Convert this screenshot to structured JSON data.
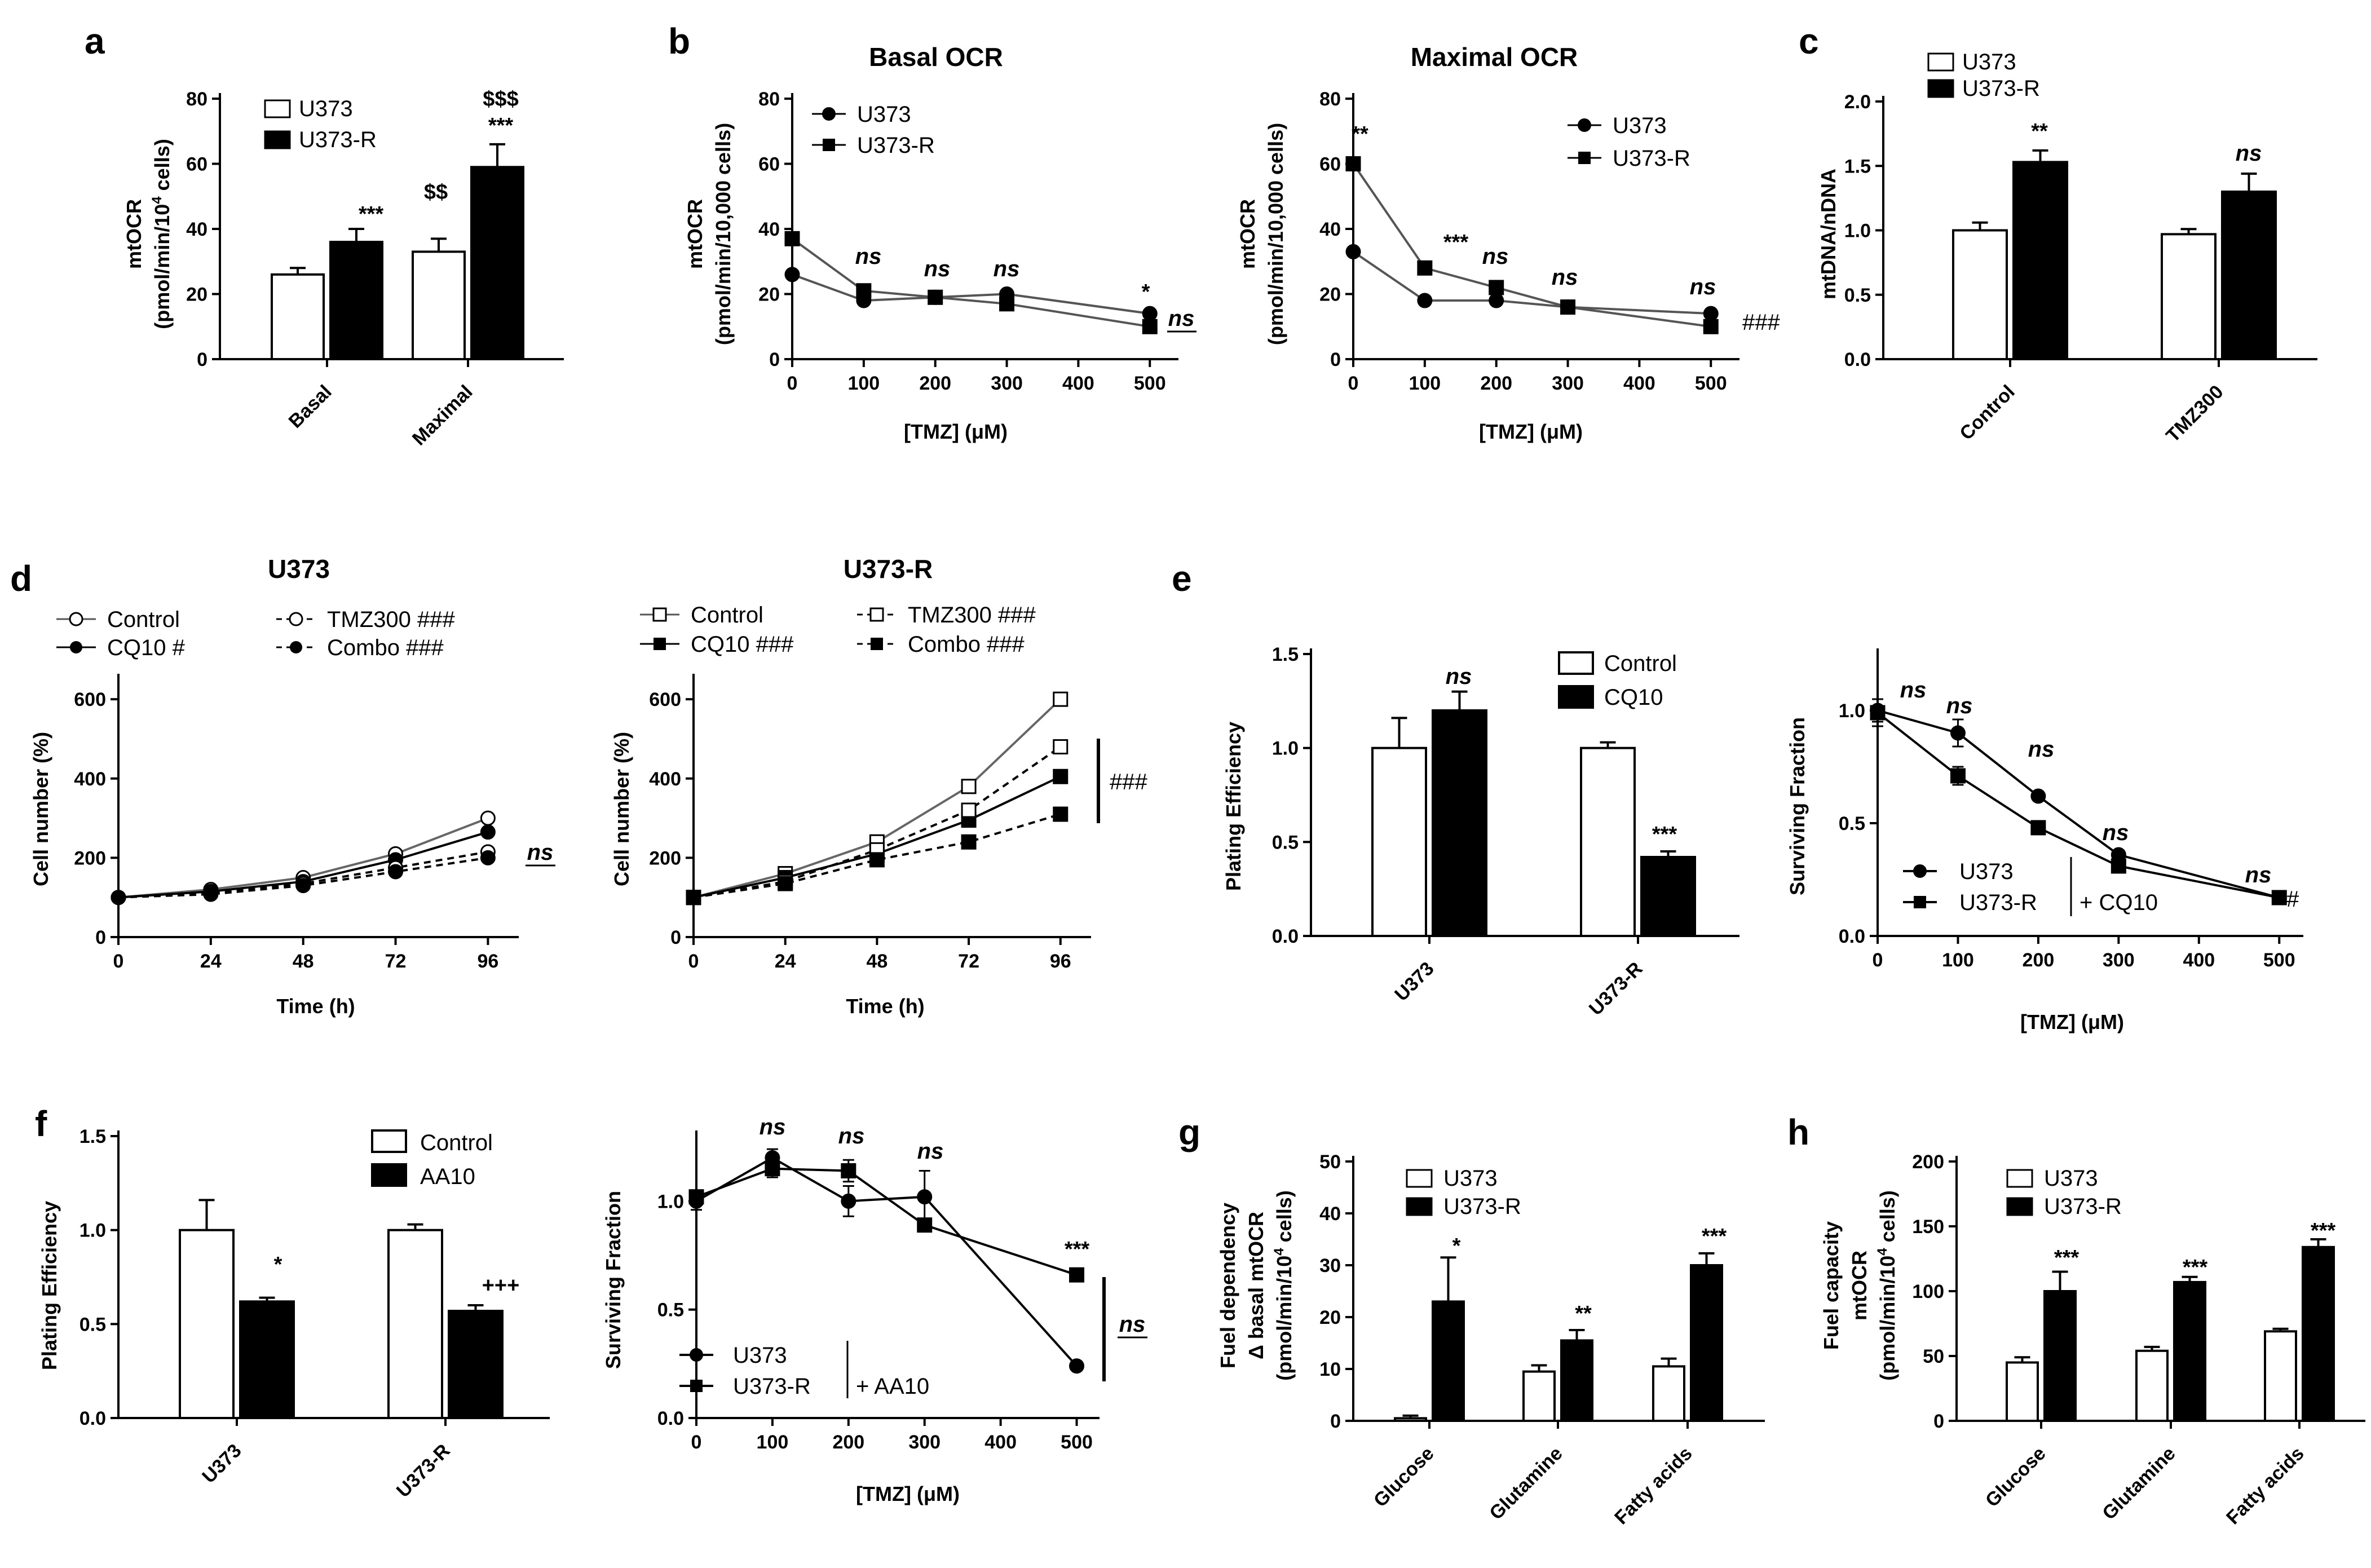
{
  "chart_data": [
    {
      "panel": "a",
      "type": "bar",
      "ylabel": "mtOCR\n(pmol/min/10^4 cells)",
      "ylim": [
        0,
        80
      ],
      "yticks": [
        0,
        20,
        40,
        60,
        80
      ],
      "categories": [
        "Basal",
        "Maximal"
      ],
      "series": [
        {
          "name": "U373",
          "values": [
            26,
            33
          ],
          "errors": [
            2,
            4
          ]
        },
        {
          "name": "U373-R",
          "values": [
            36,
            59
          ],
          "errors": [
            4,
            7
          ]
        }
      ],
      "annotations": [
        "***",
        "***",
        "$$$",
        "$$"
      ]
    },
    {
      "panel": "b",
      "type": "line",
      "title": "Basal OCR",
      "xlabel": "[TMZ] (μM)",
      "ylabel": "mtOCR\n(pmol/min/10,000 cells)",
      "ylim": [
        0,
        80
      ],
      "yticks": [
        0,
        20,
        40,
        60,
        80
      ],
      "xticks": [
        0,
        100,
        200,
        300,
        400,
        500
      ],
      "series": [
        {
          "name": "U373",
          "x": [
            0,
            100,
            200,
            300,
            500
          ],
          "values": [
            26,
            18,
            19,
            20,
            14
          ]
        },
        {
          "name": "U373-R",
          "x": [
            0,
            100,
            200,
            300,
            500
          ],
          "values": [
            37,
            21,
            19,
            17,
            10
          ]
        }
      ],
      "annotations": [
        "ns",
        "ns",
        "ns",
        "*",
        "ns"
      ]
    },
    {
      "panel": "b2",
      "type": "line",
      "title": "Maximal OCR",
      "xlabel": "[TMZ] (μM)",
      "ylabel": "mtOCR\n(pmol/min/10,000 cells)",
      "ylim": [
        0,
        80
      ],
      "yticks": [
        0,
        20,
        40,
        60,
        80
      ],
      "xticks": [
        0,
        100,
        200,
        300,
        400,
        500
      ],
      "series": [
        {
          "name": "U373",
          "x": [
            0,
            100,
            200,
            300,
            500
          ],
          "values": [
            33,
            18,
            18,
            16,
            14
          ]
        },
        {
          "name": "U373-R",
          "x": [
            0,
            100,
            200,
            300,
            500
          ],
          "values": [
            60,
            28,
            22,
            16,
            10
          ]
        }
      ],
      "annotations": [
        "**",
        "***",
        "ns",
        "ns",
        "ns",
        "###"
      ]
    },
    {
      "panel": "c",
      "type": "bar",
      "ylabel": "mtDNA/nDNA",
      "ylim": [
        0,
        2.0
      ],
      "yticks": [
        "0.0",
        "0.5",
        "1.0",
        "1.5",
        "2.0"
      ],
      "categories": [
        "Control",
        "TMZ300"
      ],
      "series": [
        {
          "name": "U373",
          "values": [
            1.0,
            0.97
          ],
          "errors": [
            0.06,
            0.04
          ]
        },
        {
          "name": "U373-R",
          "values": [
            1.53,
            1.3
          ],
          "errors": [
            0.09,
            0.14
          ]
        }
      ],
      "annotations": [
        "**",
        "ns"
      ]
    },
    {
      "panel": "d",
      "type": "line",
      "title": "U373",
      "xlabel": "Time (h)",
      "ylabel": "Cell number (%)",
      "ylim": [
        0,
        650
      ],
      "yticks": [
        0,
        200,
        400,
        600
      ],
      "xticks": [
        0,
        24,
        48,
        72,
        96
      ],
      "series": [
        {
          "name": "Control",
          "x": [
            0,
            24,
            48,
            72,
            96
          ],
          "values": [
            100,
            120,
            150,
            210,
            300
          ]
        },
        {
          "name": "CQ10 #",
          "x": [
            0,
            24,
            48,
            72,
            96
          ],
          "values": [
            100,
            115,
            140,
            195,
            265
          ]
        },
        {
          "name": "TMZ300 ###",
          "x": [
            0,
            24,
            48,
            72,
            96
          ],
          "values": [
            100,
            112,
            135,
            175,
            215
          ]
        },
        {
          "name": "Combo ###",
          "x": [
            0,
            24,
            48,
            72,
            96
          ],
          "values": [
            100,
            108,
            130,
            165,
            200
          ]
        }
      ],
      "annotations": [
        "ns"
      ]
    },
    {
      "panel": "d2",
      "type": "line",
      "title": "U373-R",
      "xlabel": "Time (h)",
      "ylabel": "Cell number (%)",
      "ylim": [
        0,
        650
      ],
      "yticks": [
        0,
        200,
        400,
        600
      ],
      "xticks": [
        0,
        24,
        48,
        72,
        96
      ],
      "series": [
        {
          "name": "Control",
          "x": [
            0,
            24,
            48,
            72,
            96
          ],
          "values": [
            100,
            160,
            240,
            380,
            600
          ]
        },
        {
          "name": "CQ10 ###",
          "x": [
            0,
            24,
            48,
            72,
            96
          ],
          "values": [
            100,
            150,
            210,
            295,
            405
          ]
        },
        {
          "name": "TMZ300 ###",
          "x": [
            0,
            24,
            48,
            72,
            96
          ],
          "values": [
            100,
            140,
            220,
            320,
            480
          ]
        },
        {
          "name": "Combo ###",
          "x": [
            0,
            24,
            48,
            72,
            96
          ],
          "values": [
            100,
            135,
            195,
            240,
            310
          ]
        }
      ],
      "annotations": [
        "###"
      ]
    },
    {
      "panel": "e",
      "type": "bar",
      "ylabel": "Plating Efficiency",
      "ylim": [
        0,
        1.5
      ],
      "yticks": [
        "0.0",
        "0.5",
        "1.0",
        "1.5"
      ],
      "categories": [
        "U373",
        "U373-R"
      ],
      "series": [
        {
          "name": "Control",
          "values": [
            1.0,
            1.0
          ],
          "errors": [
            0.16,
            0.03
          ]
        },
        {
          "name": "CQ10",
          "values": [
            1.2,
            0.42
          ],
          "errors": [
            0.1,
            0.03
          ]
        }
      ],
      "annotations": [
        "ns",
        "***"
      ]
    },
    {
      "panel": "e2",
      "type": "line",
      "xlabel": "[TMZ] (μM)",
      "ylabel": "Surviving Fraction",
      "ylim": [
        0,
        1.25
      ],
      "yticks": [
        "0.0",
        "0.5",
        "1.0"
      ],
      "xticks": [
        0,
        100,
        200,
        300,
        400,
        500
      ],
      "legend_suffix": "+ CQ10",
      "series": [
        {
          "name": "U373",
          "x": [
            0,
            100,
            200,
            300,
            500
          ],
          "values": [
            1.0,
            0.9,
            0.62,
            0.36,
            0.17
          ],
          "errors": [
            0.05,
            0.06,
            0.02,
            0.02,
            0.02
          ]
        },
        {
          "name": "U373-R",
          "x": [
            0,
            100,
            200,
            300,
            500
          ],
          "values": [
            0.99,
            0.71,
            0.48,
            0.31,
            0.17
          ],
          "errors": [
            0.06,
            0.04,
            0.02,
            0.02,
            0.02
          ]
        }
      ],
      "annotations": [
        "ns",
        "ns",
        "ns",
        "ns",
        "ns",
        "#"
      ]
    },
    {
      "panel": "f",
      "type": "bar",
      "ylabel": "Plating Efficiency",
      "ylim": [
        0,
        1.5
      ],
      "yticks": [
        "0.0",
        "0.5",
        "1.0",
        "1.5"
      ],
      "categories": [
        "U373",
        "U373-R"
      ],
      "series": [
        {
          "name": "Control",
          "values": [
            1.0,
            1.0
          ],
          "errors": [
            0.16,
            0.03
          ]
        },
        {
          "name": "AA10",
          "values": [
            0.62,
            0.57
          ],
          "errors": [
            0.02,
            0.03
          ]
        }
      ],
      "annotations": [
        "*",
        "+++"
      ]
    },
    {
      "panel": "f2",
      "type": "line",
      "xlabel": "[TMZ] (μM)",
      "ylabel": "Surviving Fraction",
      "ylim": [
        0,
        1.3
      ],
      "yticks": [
        "0.0",
        "0.5",
        "1.0"
      ],
      "xticks": [
        0,
        100,
        200,
        300,
        400,
        500
      ],
      "legend_suffix": "+ AA10",
      "series": [
        {
          "name": "U373",
          "x": [
            0,
            100,
            200,
            300,
            500
          ],
          "values": [
            1.0,
            1.2,
            1.0,
            1.02,
            0.24
          ],
          "errors": [
            0.04,
            0.04,
            0.07,
            0.12,
            0.01
          ]
        },
        {
          "name": "U373-R",
          "x": [
            0,
            100,
            200,
            300,
            500
          ],
          "values": [
            1.02,
            1.15,
            1.14,
            0.89,
            0.66
          ],
          "errors": [
            0.03,
            0.04,
            0.05,
            0.03,
            0.02
          ]
        }
      ],
      "annotations": [
        "ns",
        "ns",
        "ns",
        "***",
        "ns"
      ]
    },
    {
      "panel": "g",
      "type": "bar",
      "ylabel": "Fuel dependency\nΔ basal mtOCR\n(pmol/min/10^4 cells)",
      "ylim": [
        0,
        50
      ],
      "yticks": [
        0,
        10,
        20,
        30,
        40,
        50
      ],
      "categories": [
        "Glucose",
        "Glutamine",
        "Fatty acids"
      ],
      "series": [
        {
          "name": "U373",
          "values": [
            0.5,
            9.5,
            10.5
          ],
          "errors": [
            0.5,
            1.2,
            1.5
          ]
        },
        {
          "name": "U373-R",
          "values": [
            23,
            15.5,
            30
          ],
          "errors": [
            8.5,
            2,
            2.3
          ]
        }
      ],
      "annotations": [
        "*",
        "**",
        "***"
      ]
    },
    {
      "panel": "h",
      "type": "bar",
      "ylabel": "Fuel capacity\nmtOCR\n(pmol/min/10^4 cells)",
      "ylim": [
        0,
        200
      ],
      "yticks": [
        0,
        50,
        100,
        150,
        200
      ],
      "categories": [
        "Glucose",
        "Glutamine",
        "Fatty acids"
      ],
      "series": [
        {
          "name": "U373",
          "values": [
            45,
            54,
            69
          ],
          "errors": [
            4,
            3,
            2
          ]
        },
        {
          "name": "U373-R",
          "values": [
            100,
            107,
            134
          ],
          "errors": [
            15,
            4,
            6
          ]
        }
      ],
      "annotations": [
        "***",
        "***",
        "***"
      ]
    }
  ],
  "labels": {
    "a": "a",
    "b": "b",
    "c": "c",
    "d": "d",
    "e": "e",
    "f": "f",
    "g": "g",
    "h": "h",
    "basal_ocr": "Basal OCR",
    "maximal_ocr": "Maximal OCR",
    "u373_title": "U373",
    "u373r_title": "U373-R",
    "mtocr": "mtOCR",
    "pmol_10_4": "(pmol/min/10",
    "pmol_10_4_tail": " cells)",
    "sup4": "4",
    "pmol_10000": "(pmol/min/10,000 cells)",
    "tmz_x": "[TMZ] (μM)",
    "time_x": "Time (h)",
    "mtdna": "mtDNA/nDNA",
    "cellnum": "Cell number (%)",
    "plating": "Plating Efficiency",
    "surviving": "Surviving Fraction",
    "fuel_dep1": "Fuel dependency",
    "fuel_dep2": "Δ basal mtOCR",
    "fuel_cap1": "Fuel capacity",
    "fuel_cap2": "mtOCR",
    "u373": "U373",
    "u373r": "U373-R",
    "control": "Control",
    "cq10": "CQ10",
    "aa10": "AA10",
    "tmz300": "TMZ300",
    "combo": "Combo",
    "cq10_hash": "CQ10 #",
    "tmz300_hash": "TMZ300 ###",
    "combo_hash": "Combo ###",
    "cq10_hash3": "CQ10 ###",
    "plus_cq10": "+ CQ10",
    "plus_aa10": "+ AA10",
    "basal": "Basal",
    "maximal": "Maximal",
    "glucose": "Glucose",
    "glutamine": "Glutamine",
    "fatty": "Fatty acids"
  },
  "sig": {
    "three_star": "***",
    "two_star": "**",
    "one_star": "*",
    "ns": "ns",
    "hash3": "###",
    "hash1": "#",
    "dollar3": "$$$",
    "dollar2": "$$",
    "plus3": "+++"
  }
}
